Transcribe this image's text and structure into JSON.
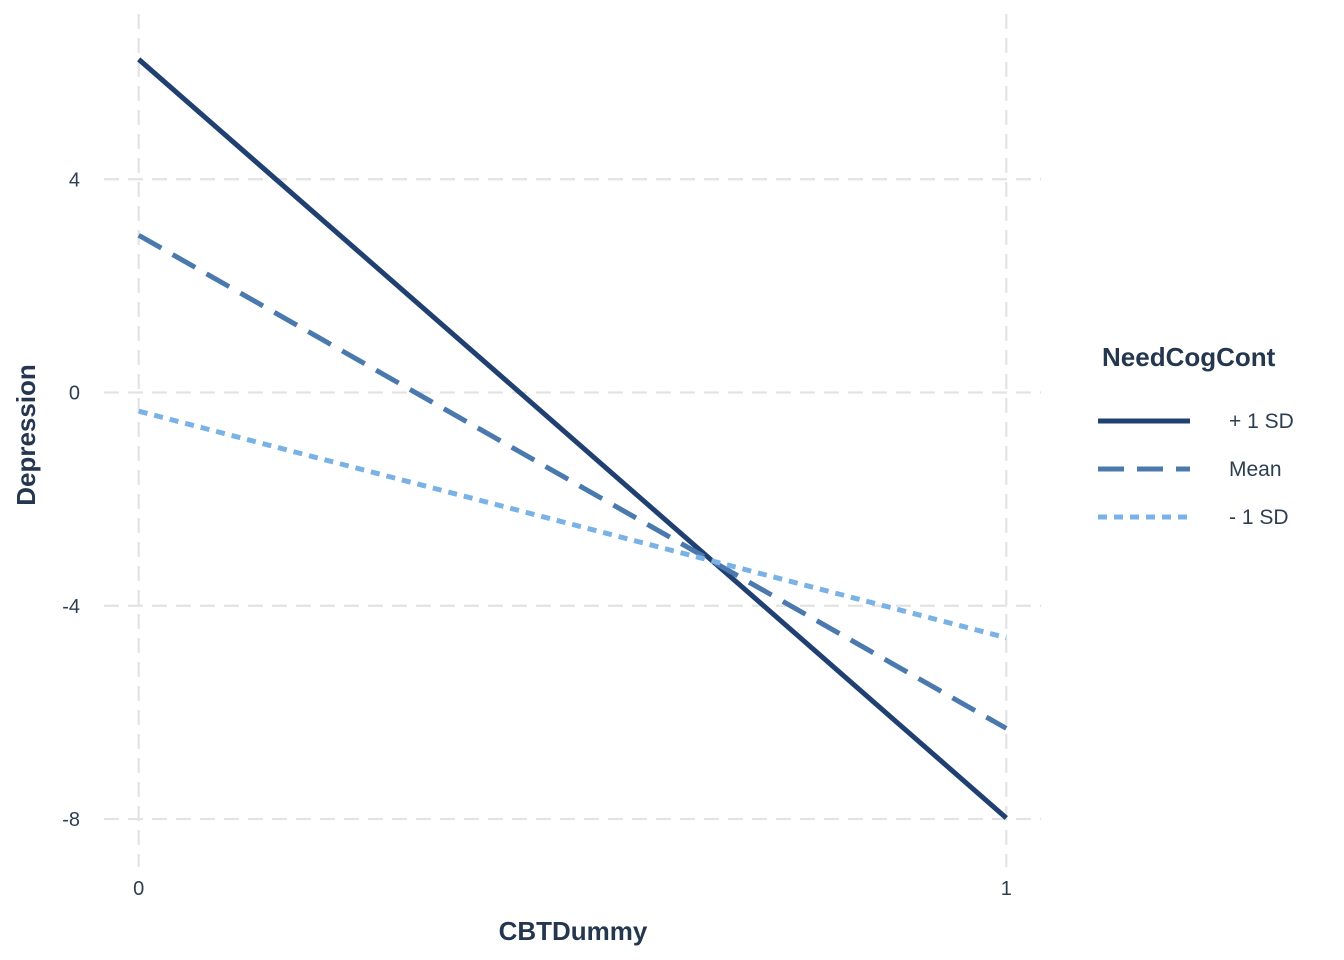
{
  "chart_data": {
    "type": "line",
    "xlabel": "CBTDummy",
    "ylabel": "Depression",
    "x": [
      0,
      1
    ],
    "xlim": [
      -0.04,
      1.04
    ],
    "ylim": [
      -8.9,
      7.1
    ],
    "xticks": [
      0,
      1
    ],
    "yticks": [
      4,
      0,
      -4,
      -8
    ],
    "grid": true,
    "legend": {
      "title": "NeedCogCont",
      "placement": "right"
    },
    "series": [
      {
        "name": "+ 1 SD",
        "values": [
          6.25,
          -7.98
        ],
        "color": "#1f4070",
        "line_style": "solid"
      },
      {
        "name": "Mean",
        "values": [
          2.95,
          -6.3
        ],
        "color": "#4a79ae",
        "line_style": "dashed"
      },
      {
        "name": "- 1 SD",
        "values": [
          -0.35,
          -4.6
        ],
        "color": "#7ab2e5",
        "line_style": "dotted"
      }
    ]
  }
}
